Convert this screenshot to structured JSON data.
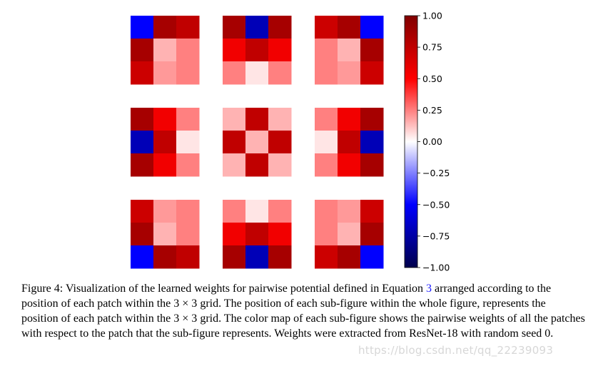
{
  "chart_data": {
    "type": "heatmap",
    "layout": "3x3 grid of 3x3 heatmaps",
    "colormap": "seismic",
    "vmin": -1.0,
    "vmax": 1.0,
    "colorbar_ticks": [
      "1.00",
      "0.75",
      "0.50",
      "0.25",
      "0.00",
      "−0.25",
      "−0.50",
      "−0.75",
      "−1.00"
    ],
    "colorbar_tick_values": [
      1.0,
      0.75,
      0.5,
      0.25,
      0.0,
      -0.25,
      -0.5,
      -0.75,
      -1.0
    ],
    "subfigures": [
      [
        [
          [
            -0.5,
            0.85,
            0.75
          ],
          [
            0.85,
            0.15,
            0.25
          ],
          [
            0.7,
            0.2,
            0.25
          ]
        ],
        [
          [
            0.85,
            -0.7,
            0.85
          ],
          [
            0.55,
            0.75,
            0.55
          ],
          [
            0.25,
            0.05,
            0.25
          ]
        ],
        [
          [
            0.7,
            0.85,
            -0.5
          ],
          [
            0.25,
            0.15,
            0.85
          ],
          [
            0.25,
            0.2,
            0.7
          ]
        ]
      ],
      [
        [
          [
            0.85,
            0.55,
            0.25
          ],
          [
            -0.7,
            0.75,
            0.05
          ],
          [
            0.85,
            0.55,
            0.25
          ]
        ],
        [
          [
            0.15,
            0.75,
            0.15
          ],
          [
            0.75,
            0.15,
            0.75
          ],
          [
            0.15,
            0.75,
            0.15
          ]
        ],
        [
          [
            0.25,
            0.55,
            0.85
          ],
          [
            0.05,
            0.75,
            -0.7
          ],
          [
            0.25,
            0.55,
            0.85
          ]
        ]
      ],
      [
        [
          [
            0.7,
            0.2,
            0.25
          ],
          [
            0.85,
            0.15,
            0.25
          ],
          [
            -0.5,
            0.85,
            0.75
          ]
        ],
        [
          [
            0.25,
            0.05,
            0.25
          ],
          [
            0.55,
            0.75,
            0.55
          ],
          [
            0.85,
            -0.7,
            0.85
          ]
        ],
        [
          [
            0.25,
            0.2,
            0.7
          ],
          [
            0.25,
            0.15,
            0.85
          ],
          [
            0.7,
            0.85,
            -0.5
          ]
        ]
      ]
    ]
  },
  "caption": {
    "label": "Figure 4:",
    "part1": "Visualization of the learned weights for pairwise potential defined in Equation",
    "equation_ref": "3",
    "part2": "arranged according to the position of each patch within the",
    "grid1": "3 × 3",
    "part3": "grid. The position of each sub-figure within the whole figure, represents the position of each patch within the",
    "grid2": "3 × 3",
    "part4": "grid. The color map of each sub-figure shows the pairwise weights of all the patches with respect to the patch that the sub-figure represents. Weights were extracted from ResNet-18 with random seed 0."
  },
  "watermark": "https://blog.csdn.net/qq_22239093"
}
